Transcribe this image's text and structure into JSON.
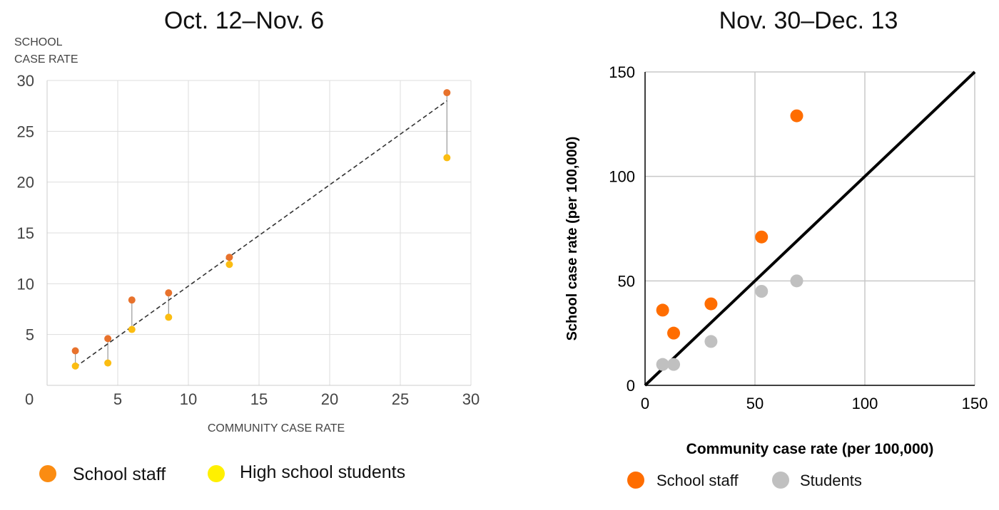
{
  "chart_data": [
    {
      "type": "scatter",
      "title": "Oct. 12–Nov. 6",
      "ylabel": [
        "SCHOOL",
        "CASE RATE"
      ],
      "xlabel": "COMMUNITY CASE RATE",
      "xlim": [
        0,
        30
      ],
      "ylim": [
        0,
        30
      ],
      "xticks": [
        "0",
        "5",
        "10",
        "15",
        "20",
        "25",
        "30"
      ],
      "yticks": [
        "5",
        "10",
        "15",
        "20",
        "25",
        "30"
      ],
      "grid": true,
      "legend_position": "bottom",
      "trendline": {
        "style": "dashed",
        "color": "#333333",
        "x": [
          2,
          28.3
        ],
        "y": [
          1.8,
          28
        ]
      },
      "series": [
        {
          "name": "School staff",
          "color": "#e8722c",
          "legend_color": "#fb8c12",
          "x": [
            2,
            4.3,
            6,
            8.6,
            12.9,
            28.3
          ],
          "y": [
            3.4,
            4.6,
            8.4,
            9.1,
            12.6,
            28.8
          ]
        },
        {
          "name": "High school students",
          "color": "#fbbd12",
          "legend_color": "#fff000",
          "x": [
            2,
            4.3,
            6,
            8.6,
            12.9,
            28.3
          ],
          "y": [
            1.9,
            2.2,
            5.5,
            6.7,
            11.9,
            22.4
          ]
        }
      ]
    },
    {
      "type": "scatter",
      "title": "Nov. 30–Dec. 13",
      "ylabel": "School case rate (per 100,000)",
      "xlabel": "Community case rate (per 100,000)",
      "xlim": [
        0,
        150
      ],
      "ylim": [
        0,
        150
      ],
      "xticks": [
        "0",
        "50",
        "100",
        "150"
      ],
      "yticks": [
        "0",
        "50",
        "100",
        "150"
      ],
      "grid": true,
      "legend_position": "bottom",
      "reference_line": {
        "label": "y = x",
        "color": "#000000"
      },
      "series": [
        {
          "name": "School staff",
          "color": "#ff6d00",
          "x": [
            8,
            13,
            30,
            53,
            69
          ],
          "y": [
            36,
            25,
            39,
            71,
            129
          ]
        },
        {
          "name": "Students",
          "color": "#c0c0c0",
          "x": [
            8,
            13,
            30,
            53,
            69
          ],
          "y": [
            10,
            10,
            21,
            45,
            50
          ]
        }
      ]
    }
  ]
}
